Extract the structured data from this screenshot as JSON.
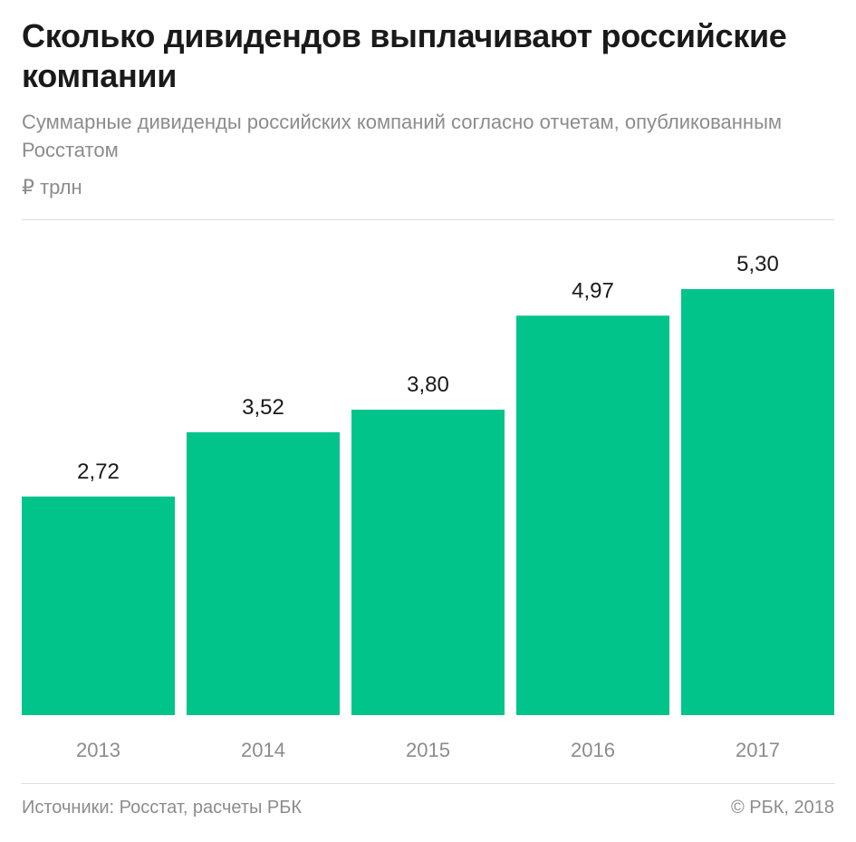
{
  "header": {
    "title": "Сколько дивидендов выплачивают российские компании",
    "subtitle": "Суммарные дивиденды российских компаний согласно отчетам, опубликованным Росстатом",
    "unit": "₽ трлн"
  },
  "footer": {
    "source": "Источники: Росстат, расчеты РБК",
    "copyright": "© РБК, 2018"
  },
  "colors": {
    "bar": "#00c48a",
    "value_label": "#1a1a1a",
    "tick_label": "#8c8c8c"
  },
  "chart_data": {
    "type": "bar",
    "title": "Сколько дивидендов выплачивают российские компании",
    "subtitle": "Суммарные дивиденды российских компаний согласно отчетам, опубликованным Росстатом",
    "ylabel": "₽ трлн",
    "xlabel": "",
    "categories": [
      "2013",
      "2014",
      "2015",
      "2016",
      "2017"
    ],
    "values": [
      2.72,
      3.52,
      3.8,
      4.97,
      5.3
    ],
    "value_labels": [
      "2,72",
      "3,52",
      "3,80",
      "4,97",
      "5,30"
    ],
    "ylim": [
      0,
      5.3
    ],
    "grid": false,
    "legend": "none"
  }
}
